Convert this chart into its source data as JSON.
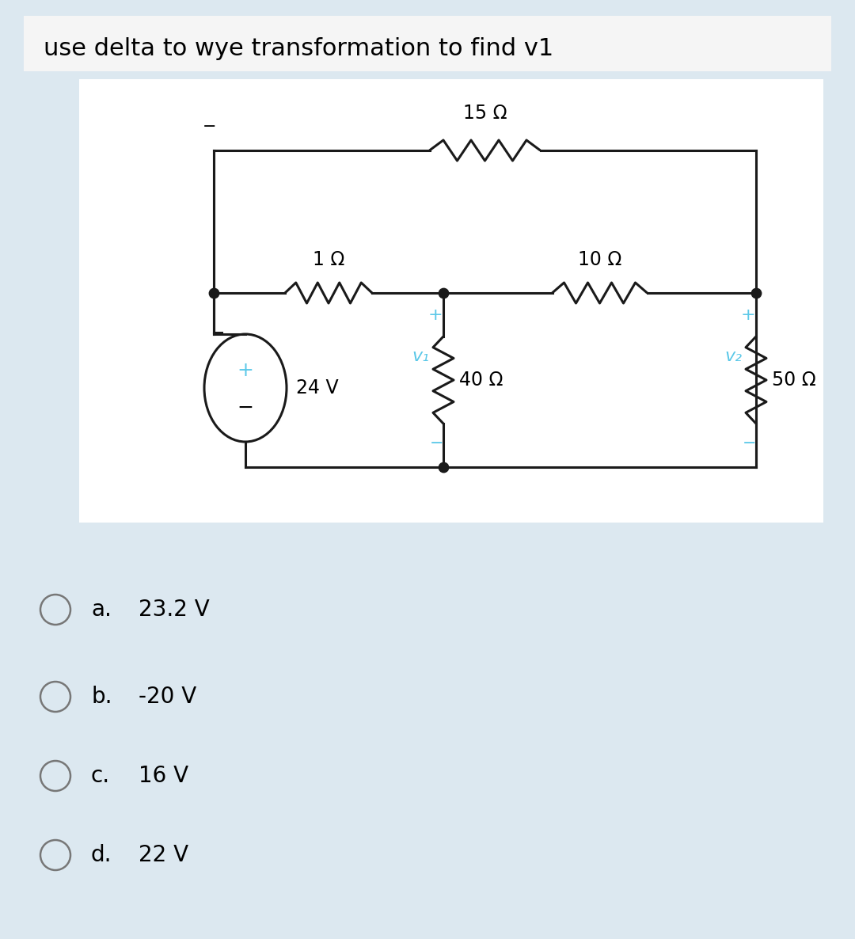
{
  "title": "use delta to wye transformation to find v1",
  "bg_outer": "#ffffff",
  "bg_main": "#dce8f0",
  "bg_title_area": "#f5f5f5",
  "bg_circuit_white": "#ffffff",
  "circuit_line_color": "#1a1a1a",
  "blue_color": "#5bc8e8",
  "answer_labels": [
    "a.",
    "b.",
    "c.",
    "d."
  ],
  "answer_vals": [
    "23.2 V",
    "-20 V",
    "16 V",
    "22 V"
  ],
  "R15": "15 Ω",
  "R1": "1 Ω",
  "R10": "10 Ω",
  "R40": "40 Ω",
  "R50": "50 Ω",
  "source_label": "24 V",
  "v1_label": "v₁",
  "v2_label": "v₂"
}
